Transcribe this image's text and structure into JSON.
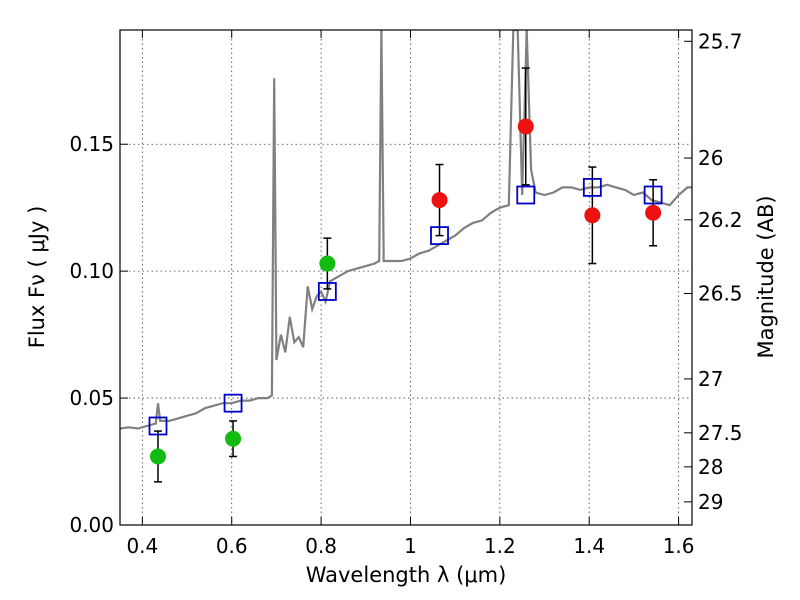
{
  "chart_data": {
    "type": "scatter",
    "title": "",
    "xlabel": "Wavelength  λ (μm)",
    "ylabel": "Flux  Fν  ( μJy )",
    "y2label": "Magnitude (AB)",
    "xlim": [
      0.35,
      1.63
    ],
    "ylim": [
      0.0,
      0.195
    ],
    "grid": true,
    "x_ticks": [
      {
        "value": 0.4,
        "label": "0.4"
      },
      {
        "value": 0.6,
        "label": "0.6"
      },
      {
        "value": 0.8,
        "label": "0.8"
      },
      {
        "value": 1.0,
        "label": "1"
      },
      {
        "value": 1.2,
        "label": "1.2"
      },
      {
        "value": 1.4,
        "label": "1.4"
      },
      {
        "value": 1.6,
        "label": "1.6"
      }
    ],
    "y_ticks": [
      {
        "value": 0.0,
        "label": "0.00"
      },
      {
        "value": 0.05,
        "label": "0.05"
      },
      {
        "value": 0.1,
        "label": "0.10"
      },
      {
        "value": 0.15,
        "label": "0.15"
      }
    ],
    "y2_ticks": [
      {
        "value": 25.7,
        "label": "25.7"
      },
      {
        "value": 26.0,
        "label": "26"
      },
      {
        "value": 26.2,
        "label": "26.2"
      },
      {
        "value": 26.5,
        "label": "26.5"
      },
      {
        "value": 27.0,
        "label": "27"
      },
      {
        "value": 27.5,
        "label": "27.5"
      },
      {
        "value": 28.0,
        "label": "28"
      },
      {
        "value": 29.0,
        "label": "29"
      }
    ],
    "colors": {
      "spectrum": "#808080",
      "model": "#0000cc",
      "optical": "#11bb11",
      "nir": "#ee1111",
      "errorbar": "#000000"
    },
    "spectrum": [
      [
        0.35,
        0.038
      ],
      [
        0.37,
        0.0385
      ],
      [
        0.39,
        0.038
      ],
      [
        0.41,
        0.039
      ],
      [
        0.43,
        0.04
      ],
      [
        0.435,
        0.048
      ],
      [
        0.44,
        0.041
      ],
      [
        0.46,
        0.041
      ],
      [
        0.48,
        0.042
      ],
      [
        0.5,
        0.043
      ],
      [
        0.52,
        0.044
      ],
      [
        0.54,
        0.046
      ],
      [
        0.56,
        0.047
      ],
      [
        0.58,
        0.048
      ],
      [
        0.6,
        0.048
      ],
      [
        0.62,
        0.049
      ],
      [
        0.64,
        0.049
      ],
      [
        0.66,
        0.05
      ],
      [
        0.68,
        0.05
      ],
      [
        0.69,
        0.051
      ],
      [
        0.695,
        0.176
      ],
      [
        0.7,
        0.065
      ],
      [
        0.71,
        0.075
      ],
      [
        0.72,
        0.068
      ],
      [
        0.73,
        0.082
      ],
      [
        0.74,
        0.072
      ],
      [
        0.75,
        0.074
      ],
      [
        0.76,
        0.07
      ],
      [
        0.77,
        0.094
      ],
      [
        0.78,
        0.085
      ],
      [
        0.79,
        0.09
      ],
      [
        0.8,
        0.092
      ],
      [
        0.81,
        0.088
      ],
      [
        0.82,
        0.096
      ],
      [
        0.84,
        0.098
      ],
      [
        0.86,
        0.1
      ],
      [
        0.88,
        0.101
      ],
      [
        0.9,
        0.102
      ],
      [
        0.92,
        0.103
      ],
      [
        0.93,
        0.104
      ],
      [
        0.935,
        0.195
      ],
      [
        0.94,
        0.104
      ],
      [
        0.96,
        0.104
      ],
      [
        0.98,
        0.104
      ],
      [
        1.0,
        0.105
      ],
      [
        1.02,
        0.107
      ],
      [
        1.04,
        0.108
      ],
      [
        1.06,
        0.11
      ],
      [
        1.08,
        0.112
      ],
      [
        1.1,
        0.114
      ],
      [
        1.12,
        0.117
      ],
      [
        1.14,
        0.119
      ],
      [
        1.16,
        0.12
      ],
      [
        1.18,
        0.123
      ],
      [
        1.2,
        0.125
      ],
      [
        1.22,
        0.126
      ],
      [
        1.23,
        0.195
      ],
      [
        1.24,
        0.195
      ],
      [
        1.25,
        0.13
      ],
      [
        1.26,
        0.195
      ],
      [
        1.27,
        0.14
      ],
      [
        1.28,
        0.131
      ],
      [
        1.3,
        0.13
      ],
      [
        1.32,
        0.131
      ],
      [
        1.34,
        0.133
      ],
      [
        1.36,
        0.133
      ],
      [
        1.38,
        0.132
      ],
      [
        1.4,
        0.133
      ],
      [
        1.42,
        0.133
      ],
      [
        1.44,
        0.134
      ],
      [
        1.46,
        0.133
      ],
      [
        1.48,
        0.132
      ],
      [
        1.5,
        0.13
      ],
      [
        1.52,
        0.131
      ],
      [
        1.54,
        0.128
      ],
      [
        1.56,
        0.127
      ],
      [
        1.58,
        0.126
      ],
      [
        1.6,
        0.13
      ],
      [
        1.62,
        0.133
      ],
      [
        1.63,
        0.133
      ]
    ],
    "model_points": [
      {
        "x": 0.435,
        "y": 0.039
      },
      {
        "x": 0.603,
        "y": 0.048
      },
      {
        "x": 0.814,
        "y": 0.092
      },
      {
        "x": 1.065,
        "y": 0.114
      },
      {
        "x": 1.258,
        "y": 0.13
      },
      {
        "x": 1.407,
        "y": 0.133
      },
      {
        "x": 1.543,
        "y": 0.13
      }
    ],
    "observed_points": [
      {
        "x": 0.435,
        "y": 0.027,
        "err": 0.01,
        "band": "optical"
      },
      {
        "x": 0.603,
        "y": 0.034,
        "err": 0.007,
        "band": "optical"
      },
      {
        "x": 0.814,
        "y": 0.103,
        "err": 0.01,
        "band": "optical"
      },
      {
        "x": 1.065,
        "y": 0.128,
        "err": 0.014,
        "band": "nir"
      },
      {
        "x": 1.258,
        "y": 0.157,
        "err": 0.023,
        "band": "nir"
      },
      {
        "x": 1.407,
        "y": 0.122,
        "err": 0.019,
        "band": "nir"
      },
      {
        "x": 1.543,
        "y": 0.123,
        "err": 0.013,
        "band": "nir"
      }
    ]
  }
}
